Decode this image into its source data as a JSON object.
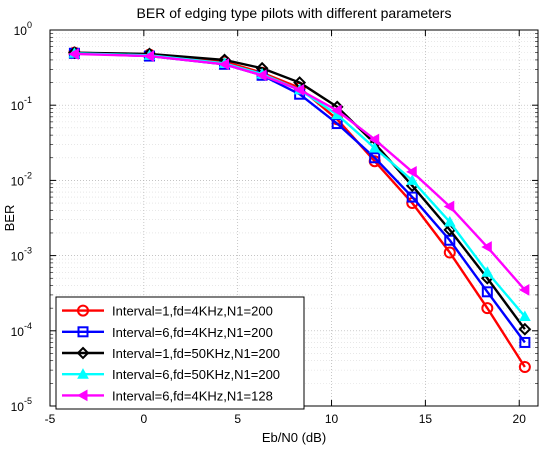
{
  "chart_data": {
    "type": "line",
    "title": "BER of edging type pilots with different parameters",
    "xlabel": "Eb/N0 (dB)",
    "ylabel": "BER",
    "xlim": [
      -5,
      21
    ],
    "ylim": [
      1e-05,
      1
    ],
    "y_scale": "log",
    "grid": true,
    "minor_grid": true,
    "legend_position": "bottom-left",
    "x_ticks": [
      -5,
      0,
      5,
      10,
      15,
      20
    ],
    "x_tick_labels": [
      "-5",
      "0",
      "5",
      "10",
      "15",
      "20"
    ],
    "y_ticks": [
      {
        "value": 1,
        "base": "10",
        "exp": "0"
      },
      {
        "value": 0.1,
        "base": "10",
        "exp": "-1"
      },
      {
        "value": 0.01,
        "base": "10",
        "exp": "-2"
      },
      {
        "value": 0.001,
        "base": "10",
        "exp": "-3"
      },
      {
        "value": 0.0001,
        "base": "10",
        "exp": "-4"
      },
      {
        "value": 1e-05,
        "base": "10",
        "exp": "-5"
      }
    ],
    "x": [
      -3.7,
      0.3,
      4.3,
      6.3,
      8.3,
      10.3,
      12.3,
      14.3,
      16.3,
      18.3,
      20.3
    ],
    "series": [
      {
        "name": "Interval=1,fd=4KHz,N1=200",
        "color": "#ff0000",
        "marker": "circle",
        "values": [
          0.5,
          0.47,
          0.38,
          0.27,
          0.17,
          0.065,
          0.018,
          0.005,
          0.0011,
          0.0002,
          3.3e-05
        ]
      },
      {
        "name": "Interval=6,fd=4KHz,N1=200",
        "color": "#0000ff",
        "marker": "square",
        "values": [
          0.49,
          0.45,
          0.35,
          0.25,
          0.14,
          0.057,
          0.02,
          0.006,
          0.0016,
          0.00033,
          7e-05
        ]
      },
      {
        "name": "Interval=1,fd=50KHz,N1=200",
        "color": "#000000",
        "marker": "diamond",
        "values": [
          0.5,
          0.48,
          0.4,
          0.31,
          0.2,
          0.095,
          0.031,
          0.0085,
          0.0022,
          0.0005,
          0.000105
        ]
      },
      {
        "name": "Interval=6,fd=50KHz,N1=200",
        "color": "#00ffff",
        "marker": "triangle-up",
        "values": [
          0.49,
          0.46,
          0.36,
          0.26,
          0.16,
          0.075,
          0.027,
          0.01,
          0.0028,
          0.0006,
          0.000155
        ]
      },
      {
        "name": "Interval=6,fd=4KHz,N1=128",
        "color": "#ff00ff",
        "marker": "triangle-left",
        "values": [
          0.48,
          0.45,
          0.35,
          0.25,
          0.16,
          0.085,
          0.035,
          0.013,
          0.0045,
          0.0013,
          0.00035
        ]
      }
    ]
  }
}
